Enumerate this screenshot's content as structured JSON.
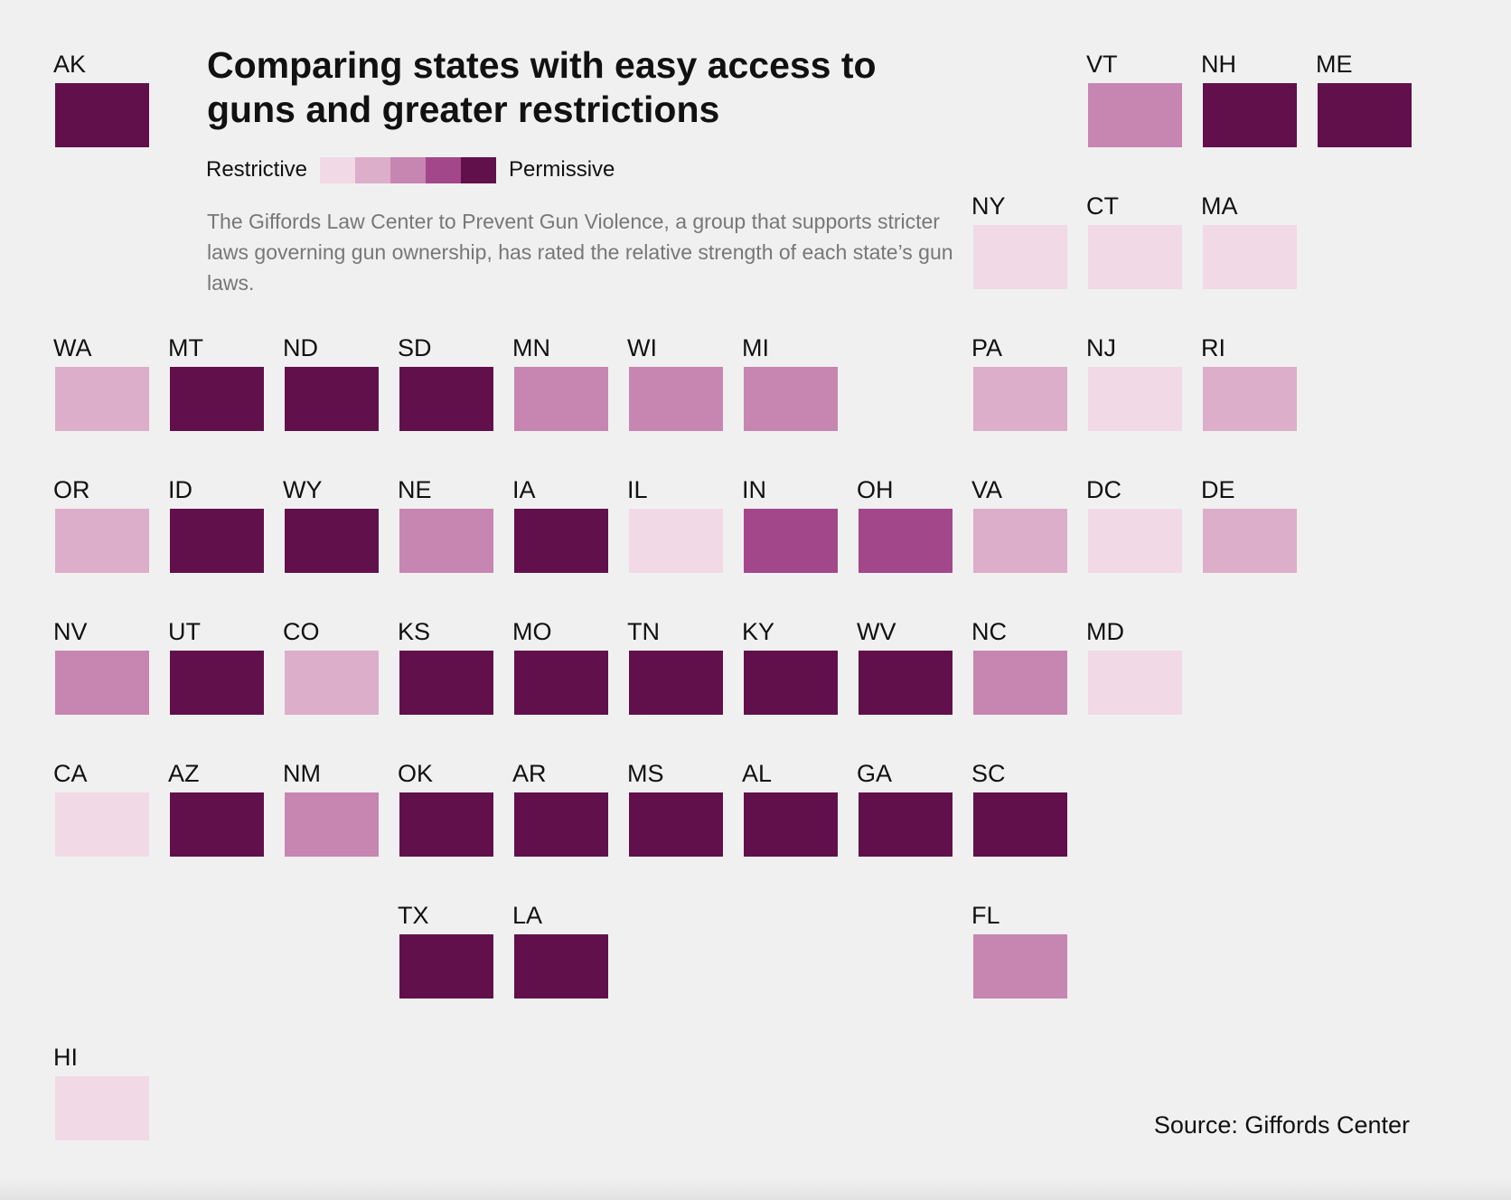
{
  "title": "Comparing states with easy access to guns and greater restrictions",
  "legend": {
    "low_label": "Restrictive",
    "high_label": "Permissive",
    "colors": [
      "#f1d9e6",
      "#dcaec9",
      "#c785b1",
      "#a3478b",
      "#62104c"
    ]
  },
  "description": "The Giffords Law Center to Prevent Gun Violence, a group that supports stricter laws governing gun ownership, has rated the relative strength of each state’s gun laws.",
  "source": "Source: Giffords Center",
  "states": [
    {
      "abbr": "VT",
      "level": 3,
      "row": 0,
      "col": 9
    },
    {
      "abbr": "NH",
      "level": 5,
      "row": 0,
      "col": 10
    },
    {
      "abbr": "ME",
      "level": 5,
      "row": 0,
      "col": 11
    },
    {
      "abbr": "AK",
      "level": 5,
      "row": 0,
      "col": 0
    },
    {
      "abbr": "NY",
      "level": 1,
      "row": 1,
      "col": 8
    },
    {
      "abbr": "CT",
      "level": 1,
      "row": 1,
      "col": 9
    },
    {
      "abbr": "MA",
      "level": 1,
      "row": 1,
      "col": 10
    },
    {
      "abbr": "WA",
      "level": 2,
      "row": 2,
      "col": 0
    },
    {
      "abbr": "MT",
      "level": 5,
      "row": 2,
      "col": 1
    },
    {
      "abbr": "ND",
      "level": 5,
      "row": 2,
      "col": 2
    },
    {
      "abbr": "SD",
      "level": 5,
      "row": 2,
      "col": 3
    },
    {
      "abbr": "MN",
      "level": 3,
      "row": 2,
      "col": 4
    },
    {
      "abbr": "WI",
      "level": 3,
      "row": 2,
      "col": 5
    },
    {
      "abbr": "MI",
      "level": 3,
      "row": 2,
      "col": 6
    },
    {
      "abbr": "PA",
      "level": 2,
      "row": 2,
      "col": 8
    },
    {
      "abbr": "NJ",
      "level": 1,
      "row": 2,
      "col": 9
    },
    {
      "abbr": "RI",
      "level": 2,
      "row": 2,
      "col": 10
    },
    {
      "abbr": "OR",
      "level": 2,
      "row": 3,
      "col": 0
    },
    {
      "abbr": "ID",
      "level": 5,
      "row": 3,
      "col": 1
    },
    {
      "abbr": "WY",
      "level": 5,
      "row": 3,
      "col": 2
    },
    {
      "abbr": "NE",
      "level": 3,
      "row": 3,
      "col": 3
    },
    {
      "abbr": "IA",
      "level": 5,
      "row": 3,
      "col": 4
    },
    {
      "abbr": "IL",
      "level": 1,
      "row": 3,
      "col": 5
    },
    {
      "abbr": "IN",
      "level": 4,
      "row": 3,
      "col": 6
    },
    {
      "abbr": "OH",
      "level": 4,
      "row": 3,
      "col": 7
    },
    {
      "abbr": "VA",
      "level": 2,
      "row": 3,
      "col": 8
    },
    {
      "abbr": "DC",
      "level": 1,
      "row": 3,
      "col": 9
    },
    {
      "abbr": "DE",
      "level": 2,
      "row": 3,
      "col": 10
    },
    {
      "abbr": "NV",
      "level": 3,
      "row": 4,
      "col": 0
    },
    {
      "abbr": "UT",
      "level": 5,
      "row": 4,
      "col": 1
    },
    {
      "abbr": "CO",
      "level": 2,
      "row": 4,
      "col": 2
    },
    {
      "abbr": "KS",
      "level": 5,
      "row": 4,
      "col": 3
    },
    {
      "abbr": "MO",
      "level": 5,
      "row": 4,
      "col": 4
    },
    {
      "abbr": "TN",
      "level": 5,
      "row": 4,
      "col": 5
    },
    {
      "abbr": "KY",
      "level": 5,
      "row": 4,
      "col": 6
    },
    {
      "abbr": "WV",
      "level": 5,
      "row": 4,
      "col": 7
    },
    {
      "abbr": "NC",
      "level": 3,
      "row": 4,
      "col": 8
    },
    {
      "abbr": "MD",
      "level": 1,
      "row": 4,
      "col": 9
    },
    {
      "abbr": "CA",
      "level": 1,
      "row": 5,
      "col": 0
    },
    {
      "abbr": "AZ",
      "level": 5,
      "row": 5,
      "col": 1
    },
    {
      "abbr": "NM",
      "level": 3,
      "row": 5,
      "col": 2
    },
    {
      "abbr": "OK",
      "level": 5,
      "row": 5,
      "col": 3
    },
    {
      "abbr": "AR",
      "level": 5,
      "row": 5,
      "col": 4
    },
    {
      "abbr": "MS",
      "level": 5,
      "row": 5,
      "col": 5
    },
    {
      "abbr": "AL",
      "level": 5,
      "row": 5,
      "col": 6
    },
    {
      "abbr": "GA",
      "level": 5,
      "row": 5,
      "col": 7
    },
    {
      "abbr": "SC",
      "level": 5,
      "row": 5,
      "col": 8
    },
    {
      "abbr": "TX",
      "level": 5,
      "row": 6,
      "col": 3
    },
    {
      "abbr": "LA",
      "level": 5,
      "row": 6,
      "col": 4
    },
    {
      "abbr": "FL",
      "level": 3,
      "row": 6,
      "col": 8
    },
    {
      "abbr": "HI",
      "level": 1,
      "row": 7,
      "col": 0
    }
  ]
}
